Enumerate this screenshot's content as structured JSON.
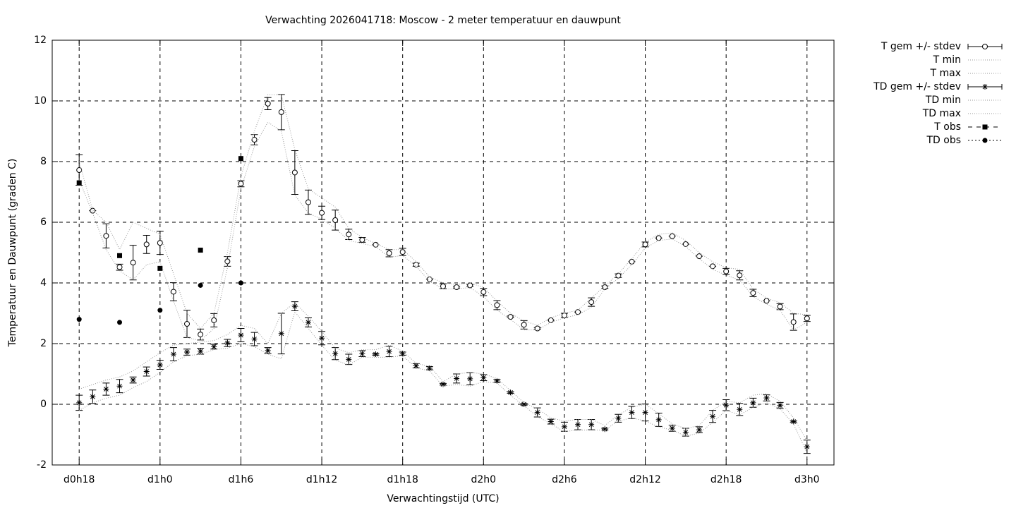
{
  "chart_data": {
    "type": "line",
    "title": "Verwachting 2026041718: Moscow - 2 meter temperatuur en dauwpunt",
    "xlabel": "Verwachtingstijd (UTC)",
    "ylabel": "Temperatuur en Dauwpunt (graden C)",
    "x": [
      18,
      19,
      20,
      21,
      22,
      23,
      24,
      25,
      26,
      27,
      28,
      29,
      30,
      31,
      32,
      33,
      34,
      35,
      36,
      37,
      38,
      39,
      40,
      41,
      42,
      43,
      44,
      45,
      46,
      47,
      48,
      49,
      50,
      51,
      52,
      53,
      54,
      55,
      56,
      57,
      58,
      59,
      60,
      61,
      62,
      63,
      64,
      65,
      66,
      67,
      68,
      69,
      70,
      71,
      72
    ],
    "xlim": [
      16,
      74
    ],
    "xticks": [
      {
        "value": 18,
        "label": "d0h18"
      },
      {
        "value": 24,
        "label": "d1h0"
      },
      {
        "value": 30,
        "label": "d1h6"
      },
      {
        "value": 36,
        "label": "d1h12"
      },
      {
        "value": 42,
        "label": "d1h18"
      },
      {
        "value": 48,
        "label": "d2h0"
      },
      {
        "value": 54,
        "label": "d2h6"
      },
      {
        "value": 60,
        "label": "d2h12"
      },
      {
        "value": 66,
        "label": "d2h18"
      },
      {
        "value": 72,
        "label": "d3h0"
      }
    ],
    "ylim": [
      -2,
      12
    ],
    "yticks": [
      -2,
      0,
      2,
      4,
      6,
      8,
      10,
      12
    ],
    "grid": true,
    "legend": "right",
    "series": [
      {
        "name": "T gem +/- stdev",
        "style": "errorbar",
        "marker": "circle",
        "color": "#000000",
        "values": [
          7.72,
          6.38,
          5.55,
          4.52,
          4.67,
          5.27,
          5.32,
          3.71,
          2.65,
          2.3,
          2.77,
          4.71,
          7.27,
          8.72,
          9.91,
          9.63,
          7.64,
          6.66,
          6.31,
          6.07,
          5.6,
          5.42,
          5.26,
          4.98,
          5.02,
          4.6,
          4.12,
          3.89,
          3.86,
          3.92,
          3.7,
          3.27,
          2.88,
          2.62,
          2.5,
          2.77,
          2.93,
          3.04,
          3.37,
          3.86,
          4.24,
          4.7,
          5.27,
          5.48,
          5.54,
          5.28,
          4.88,
          4.55,
          4.38,
          4.25,
          3.67,
          3.41,
          3.22,
          2.71,
          2.83
        ],
        "errors": [
          0.5,
          0,
          0.4,
          0.1,
          0.57,
          0.3,
          0.38,
          0.3,
          0.45,
          0.18,
          0.22,
          0.16,
          0.1,
          0.17,
          0.2,
          0.58,
          0.72,
          0.4,
          0.22,
          0.33,
          0.17,
          0.08,
          0,
          0.12,
          0.12,
          0.05,
          0,
          0.08,
          0.03,
          0.03,
          0.12,
          0.15,
          0.03,
          0.14,
          0.03,
          0,
          0.07,
          0,
          0.14,
          0.04,
          0.06,
          0,
          0.08,
          0,
          0,
          0,
          0,
          0,
          0.1,
          0.15,
          0.12,
          0,
          0.1,
          0.27,
          0.1
        ]
      },
      {
        "name": "T min",
        "style": "dotted",
        "color": "#999999",
        "values": [
          7.4,
          6.3,
          5.1,
          4.4,
          4.1,
          4.6,
          4.7,
          3.4,
          2.2,
          2.1,
          2.5,
          4.5,
          7.1,
          8.5,
          9.3,
          9.0,
          6.9,
          6.3,
          6.1,
          5.8,
          5.4,
          5.3,
          5.2,
          4.85,
          4.9,
          4.55,
          4.05,
          3.8,
          3.8,
          3.85,
          3.55,
          3.1,
          2.8,
          2.45,
          2.45,
          2.7,
          2.85,
          2.95,
          3.2,
          3.8,
          4.15,
          4.6,
          5.15,
          5.4,
          5.45,
          5.2,
          4.8,
          4.45,
          4.25,
          4.1,
          3.55,
          3.3,
          3.1,
          2.45,
          2.7
        ]
      },
      {
        "name": "T max",
        "style": "dotted",
        "color": "#999999",
        "values": [
          8.0,
          6.4,
          6.0,
          5.1,
          6.0,
          5.8,
          5.6,
          4.3,
          3.0,
          2.5,
          3.0,
          5.0,
          7.5,
          9.0,
          10.2,
          10.2,
          8.4,
          7.1,
          6.8,
          6.5,
          5.8,
          5.5,
          5.3,
          5.1,
          5.1,
          4.7,
          4.2,
          4.0,
          3.95,
          4.0,
          3.85,
          3.4,
          3.0,
          2.75,
          2.6,
          2.85,
          3.0,
          3.1,
          3.5,
          3.9,
          4.3,
          4.8,
          5.35,
          5.6,
          5.65,
          5.4,
          5.0,
          4.7,
          4.5,
          4.45,
          3.8,
          3.5,
          3.35,
          3.0,
          2.95
        ]
      },
      {
        "name": "TD gem +/- stdev",
        "style": "errorbar",
        "marker": "star",
        "color": "#000000",
        "values": [
          0.05,
          0.25,
          0.5,
          0.6,
          0.8,
          1.08,
          1.3,
          1.65,
          1.72,
          1.75,
          1.9,
          2.02,
          2.28,
          2.15,
          1.77,
          2.33,
          3.23,
          2.7,
          2.18,
          1.67,
          1.48,
          1.67,
          1.65,
          1.74,
          1.67,
          1.27,
          1.19,
          0.66,
          0.85,
          0.84,
          0.88,
          0.77,
          0.39,
          0.0,
          -0.27,
          -0.57,
          -0.74,
          -0.67,
          -0.67,
          -0.82,
          -0.46,
          -0.27,
          -0.27,
          -0.51,
          -0.79,
          -0.92,
          -0.84,
          -0.4,
          -0.03,
          -0.17,
          0.05,
          0.21,
          -0.04,
          -0.57,
          -1.4
        ],
        "errors": [
          0.25,
          0.22,
          0.2,
          0.22,
          0.1,
          0.15,
          0.15,
          0.22,
          0.1,
          0.1,
          0.08,
          0.12,
          0.22,
          0.22,
          0.1,
          0.67,
          0.15,
          0.15,
          0.22,
          0.2,
          0.17,
          0.1,
          0.03,
          0.17,
          0.05,
          0.07,
          0.05,
          0.03,
          0.15,
          0.2,
          0.1,
          0.05,
          0.03,
          0.03,
          0.15,
          0.08,
          0.15,
          0.17,
          0.17,
          0.03,
          0.13,
          0.2,
          0.28,
          0.22,
          0.1,
          0.13,
          0.1,
          0.2,
          0.18,
          0.2,
          0.15,
          0.1,
          0.1,
          0.03,
          0.22
        ]
      },
      {
        "name": "TD min",
        "style": "dotted",
        "color": "#999999",
        "values": [
          -0.2,
          0.05,
          0.2,
          0.3,
          0.55,
          0.75,
          1.05,
          1.4,
          1.6,
          1.65,
          1.8,
          1.85,
          2.0,
          1.9,
          1.65,
          1.5,
          3.05,
          2.5,
          1.95,
          1.45,
          1.3,
          1.55,
          1.55,
          1.55,
          1.6,
          1.2,
          1.1,
          0.6,
          0.65,
          0.6,
          0.75,
          0.7,
          0.3,
          -0.05,
          -0.4,
          -0.65,
          -0.9,
          -0.85,
          -0.85,
          -0.85,
          -0.55,
          -0.45,
          -0.55,
          -0.75,
          -0.85,
          -1.05,
          -0.95,
          -0.6,
          -0.2,
          -0.35,
          -0.1,
          0.05,
          -0.15,
          -0.65,
          -1.6
        ]
      },
      {
        "name": "TD max",
        "style": "dotted",
        "color": "#999999",
        "values": [
          0.5,
          0.65,
          0.8,
          0.9,
          1.1,
          1.4,
          1.7,
          1.95,
          2.0,
          2.05,
          2.1,
          2.3,
          2.6,
          2.5,
          2.0,
          3.0,
          3.35,
          2.9,
          2.4,
          1.85,
          1.7,
          1.8,
          1.8,
          1.95,
          1.75,
          1.35,
          1.25,
          0.75,
          1.0,
          1.05,
          1.0,
          0.85,
          0.45,
          0.05,
          -0.15,
          -0.45,
          -0.55,
          -0.5,
          -0.5,
          -0.7,
          -0.35,
          -0.1,
          0.0,
          -0.3,
          -0.65,
          -0.8,
          -0.7,
          -0.2,
          0.1,
          0.05,
          0.3,
          0.35,
          0.1,
          -0.45,
          -1.2
        ]
      },
      {
        "name": "T obs",
        "style": "points",
        "marker": "square",
        "color": "#000000",
        "x": [
          18,
          21,
          24,
          27,
          30
        ],
        "values": [
          7.3,
          4.9,
          4.48,
          5.08,
          8.1
        ]
      },
      {
        "name": "TD obs",
        "style": "points",
        "marker": "dot",
        "color": "#000000",
        "x": [
          18,
          21,
          24,
          27,
          30
        ],
        "values": [
          2.8,
          2.7,
          3.1,
          3.92,
          4.0
        ]
      }
    ]
  }
}
